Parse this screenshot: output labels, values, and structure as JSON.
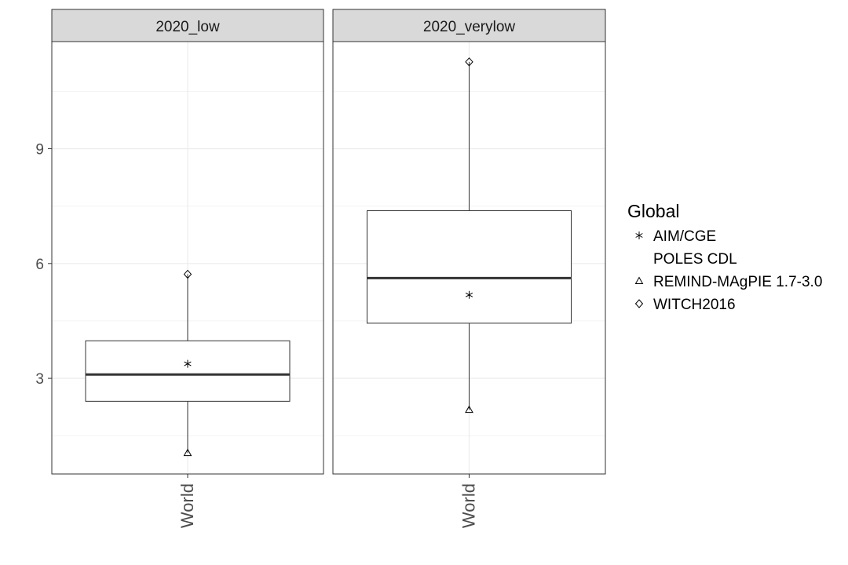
{
  "chart_data": {
    "type": "box",
    "y_ticks": [
      3,
      6,
      9
    ],
    "ylim": [
      0.5,
      11.8
    ],
    "grid": true,
    "legend": {
      "title": "Global",
      "position": "right",
      "entries": [
        {
          "label": "AIM/CGE",
          "shape": "asterisk"
        },
        {
          "label": "POLES CDL",
          "shape": "none"
        },
        {
          "label": "REMIND-MAgPIE 1.7-3.0",
          "shape": "triangle"
        },
        {
          "label": "WITCH2016",
          "shape": "diamond"
        }
      ]
    },
    "panels": [
      {
        "strip": "2020_low",
        "category": "World",
        "box": {
          "whisker_low": 1.05,
          "q1": 2.4,
          "median": 3.1,
          "q3": 3.98,
          "whisker_high": 5.72
        },
        "points": [
          {
            "model": "AIM/CGE",
            "value": 3.38
          },
          {
            "model": "REMIND-MAgPIE 1.7-3.0",
            "value": 1.05
          },
          {
            "model": "WITCH2016",
            "value": 5.72
          }
        ]
      },
      {
        "strip": "2020_verylow",
        "category": "World",
        "box": {
          "whisker_low": 2.18,
          "q1": 4.44,
          "median": 5.62,
          "q3": 7.38,
          "whisker_high": 11.27
        },
        "points": [
          {
            "model": "AIM/CGE",
            "value": 5.18
          },
          {
            "model": "REMIND-MAgPIE 1.7-3.0",
            "value": 2.18
          },
          {
            "model": "WITCH2016",
            "value": 11.27
          }
        ]
      }
    ]
  }
}
